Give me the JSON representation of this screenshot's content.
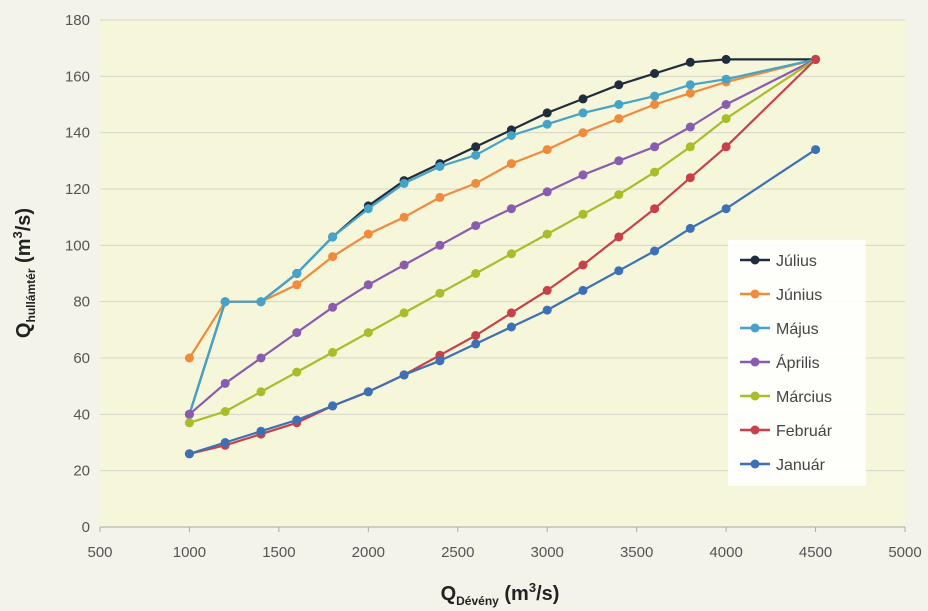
{
  "chart_data": {
    "type": "line",
    "xlabel": {
      "main": "Q",
      "sub": "Dévény",
      "unit_pre": " (m",
      "unit_sup": "3",
      "unit_post": "/s)"
    },
    "ylabel": {
      "main": "Q",
      "sub": "hullámtér",
      "unit_pre": " (m",
      "unit_sup": "3",
      "unit_post": "/s)"
    },
    "xlim": [
      500,
      5000
    ],
    "ylim": [
      0,
      180
    ],
    "xticks": [
      500,
      1000,
      1500,
      2000,
      2500,
      3000,
      3500,
      4000,
      4500,
      5000
    ],
    "yticks": [
      0,
      20,
      40,
      60,
      80,
      100,
      120,
      140,
      160,
      180
    ],
    "grid": "horizontal",
    "legend_position": "right",
    "plot_background": "#f6f6da",
    "series": [
      {
        "name": "Július",
        "color": "#1f2d3d",
        "x": [
          1000,
          1200,
          1400,
          1600,
          1800,
          2000,
          2200,
          2400,
          2600,
          2800,
          3000,
          3200,
          3400,
          3600,
          3800,
          4000,
          4500
        ],
        "y": [
          40,
          80,
          80,
          90,
          103,
          114,
          123,
          129,
          135,
          141,
          147,
          152,
          157,
          161,
          165,
          166,
          166
        ]
      },
      {
        "name": "Június",
        "color": "#f08a3c",
        "x": [
          1000,
          1200,
          1400,
          1600,
          1800,
          2000,
          2200,
          2400,
          2600,
          2800,
          3000,
          3200,
          3400,
          3600,
          3800,
          4000,
          4500
        ],
        "y": [
          60,
          80,
          80,
          86,
          96,
          104,
          110,
          117,
          122,
          129,
          134,
          140,
          145,
          150,
          154,
          158,
          166
        ]
      },
      {
        "name": "Május",
        "color": "#45a2c8",
        "x": [
          1000,
          1200,
          1400,
          1600,
          1800,
          2000,
          2200,
          2400,
          2600,
          2800,
          3000,
          3200,
          3400,
          3600,
          3800,
          4000,
          4500
        ],
        "y": [
          40,
          80,
          80,
          90,
          103,
          113,
          122,
          128,
          132,
          139,
          143,
          147,
          150,
          153,
          157,
          159,
          166
        ]
      },
      {
        "name": "Április",
        "color": "#8a5cb0",
        "x": [
          1000,
          1200,
          1400,
          1600,
          1800,
          2000,
          2200,
          2400,
          2600,
          2800,
          3000,
          3200,
          3400,
          3600,
          3800,
          4000,
          4500
        ],
        "y": [
          40,
          51,
          60,
          69,
          78,
          86,
          93,
          100,
          107,
          113,
          119,
          125,
          130,
          135,
          142,
          150,
          166
        ]
      },
      {
        "name": "Március",
        "color": "#a9bd2a",
        "x": [
          1000,
          1200,
          1400,
          1600,
          1800,
          2000,
          2200,
          2400,
          2600,
          2800,
          3000,
          3200,
          3400,
          3600,
          3800,
          4000,
          4500
        ],
        "y": [
          37,
          41,
          48,
          55,
          62,
          69,
          76,
          83,
          90,
          97,
          104,
          111,
          118,
          126,
          135,
          145,
          166
        ]
      },
      {
        "name": "Február",
        "color": "#c8404a",
        "x": [
          1000,
          1200,
          1400,
          1600,
          1800,
          2000,
          2200,
          2400,
          2600,
          2800,
          3000,
          3200,
          3400,
          3600,
          3800,
          4000,
          4500
        ],
        "y": [
          26,
          29,
          33,
          37,
          43,
          48,
          54,
          61,
          68,
          76,
          84,
          93,
          103,
          113,
          124,
          135,
          166
        ]
      },
      {
        "name": "Január",
        "color": "#3e70b5",
        "x": [
          1000,
          1200,
          1400,
          1600,
          1800,
          2000,
          2200,
          2400,
          2600,
          2800,
          3000,
          3200,
          3400,
          3600,
          3800,
          4000,
          4500
        ],
        "y": [
          26,
          30,
          34,
          38,
          43,
          48,
          54,
          59,
          65,
          71,
          77,
          84,
          91,
          98,
          106,
          113,
          134
        ]
      }
    ]
  }
}
